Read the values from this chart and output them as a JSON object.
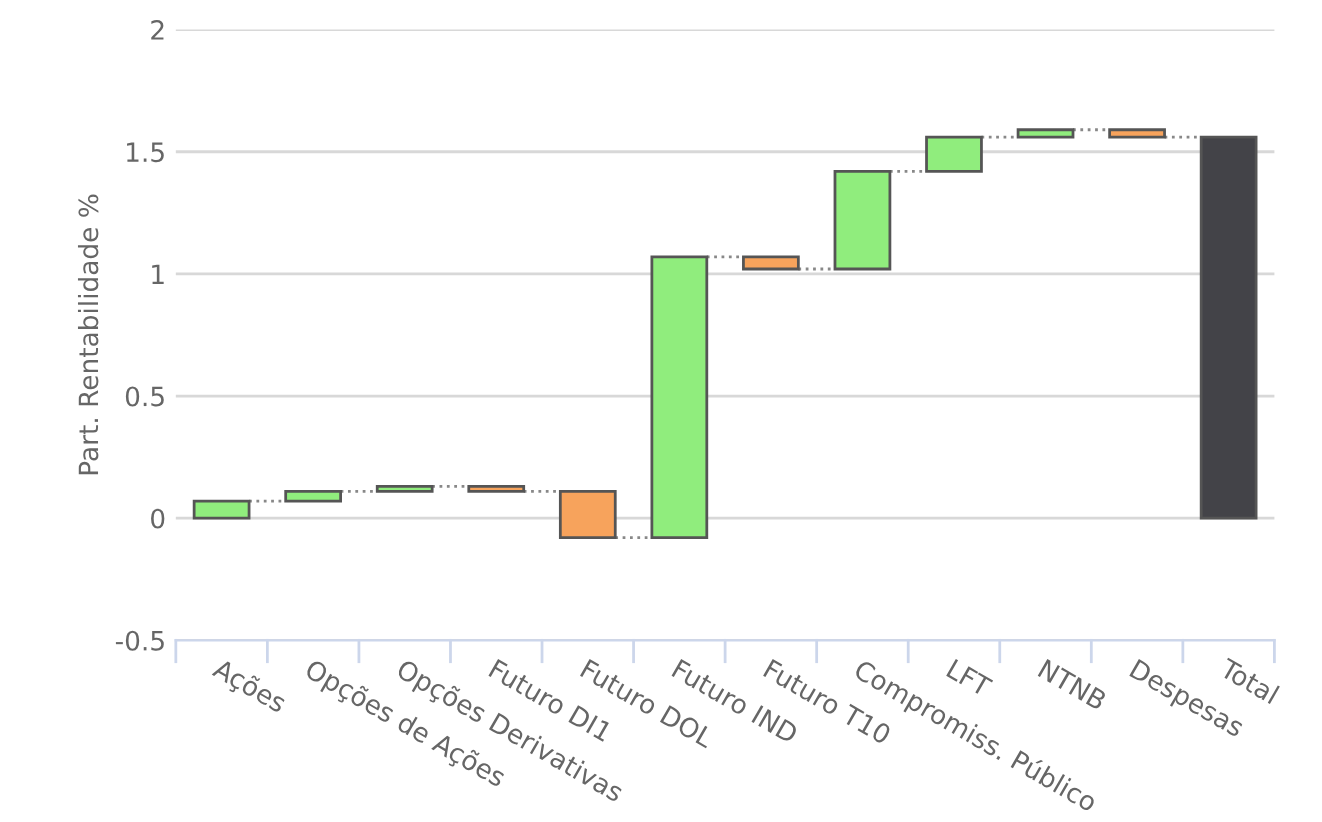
{
  "chart_data": {
    "type": "bar",
    "ylabel": "Part. Rentabilidade %",
    "categories": [
      "Ações",
      "Opções de Ações",
      "Opções Derivativas",
      "Futuro DI1",
      "Futuro DOL",
      "Futuro IND",
      "Futuro T10",
      "Compromiss. Público",
      "LFT",
      "NTNB",
      "Despesas",
      "Total"
    ],
    "values": [
      0.07,
      0.04,
      0.02,
      -0.02,
      -0.19,
      1.15,
      -0.05,
      0.4,
      0.14,
      0.03,
      -0.03,
      1.56
    ],
    "base": [
      0,
      0.07,
      0.11,
      0.13,
      0.11,
      -0.08,
      1.07,
      1.02,
      1.42,
      1.56,
      1.59,
      0
    ],
    "colors": [
      "#90ed7d",
      "#90ed7d",
      "#90ed7d",
      "#f7a35c",
      "#f7a35c",
      "#90ed7d",
      "#f7a35c",
      "#90ed7d",
      "#90ed7d",
      "#90ed7d",
      "#f7a35c",
      "#434348"
    ],
    "ylim": [
      -0.5,
      2
    ],
    "yticks": [
      -0.5,
      0,
      0.5,
      1,
      1.5,
      2
    ],
    "grid": "y",
    "legend": false
  }
}
